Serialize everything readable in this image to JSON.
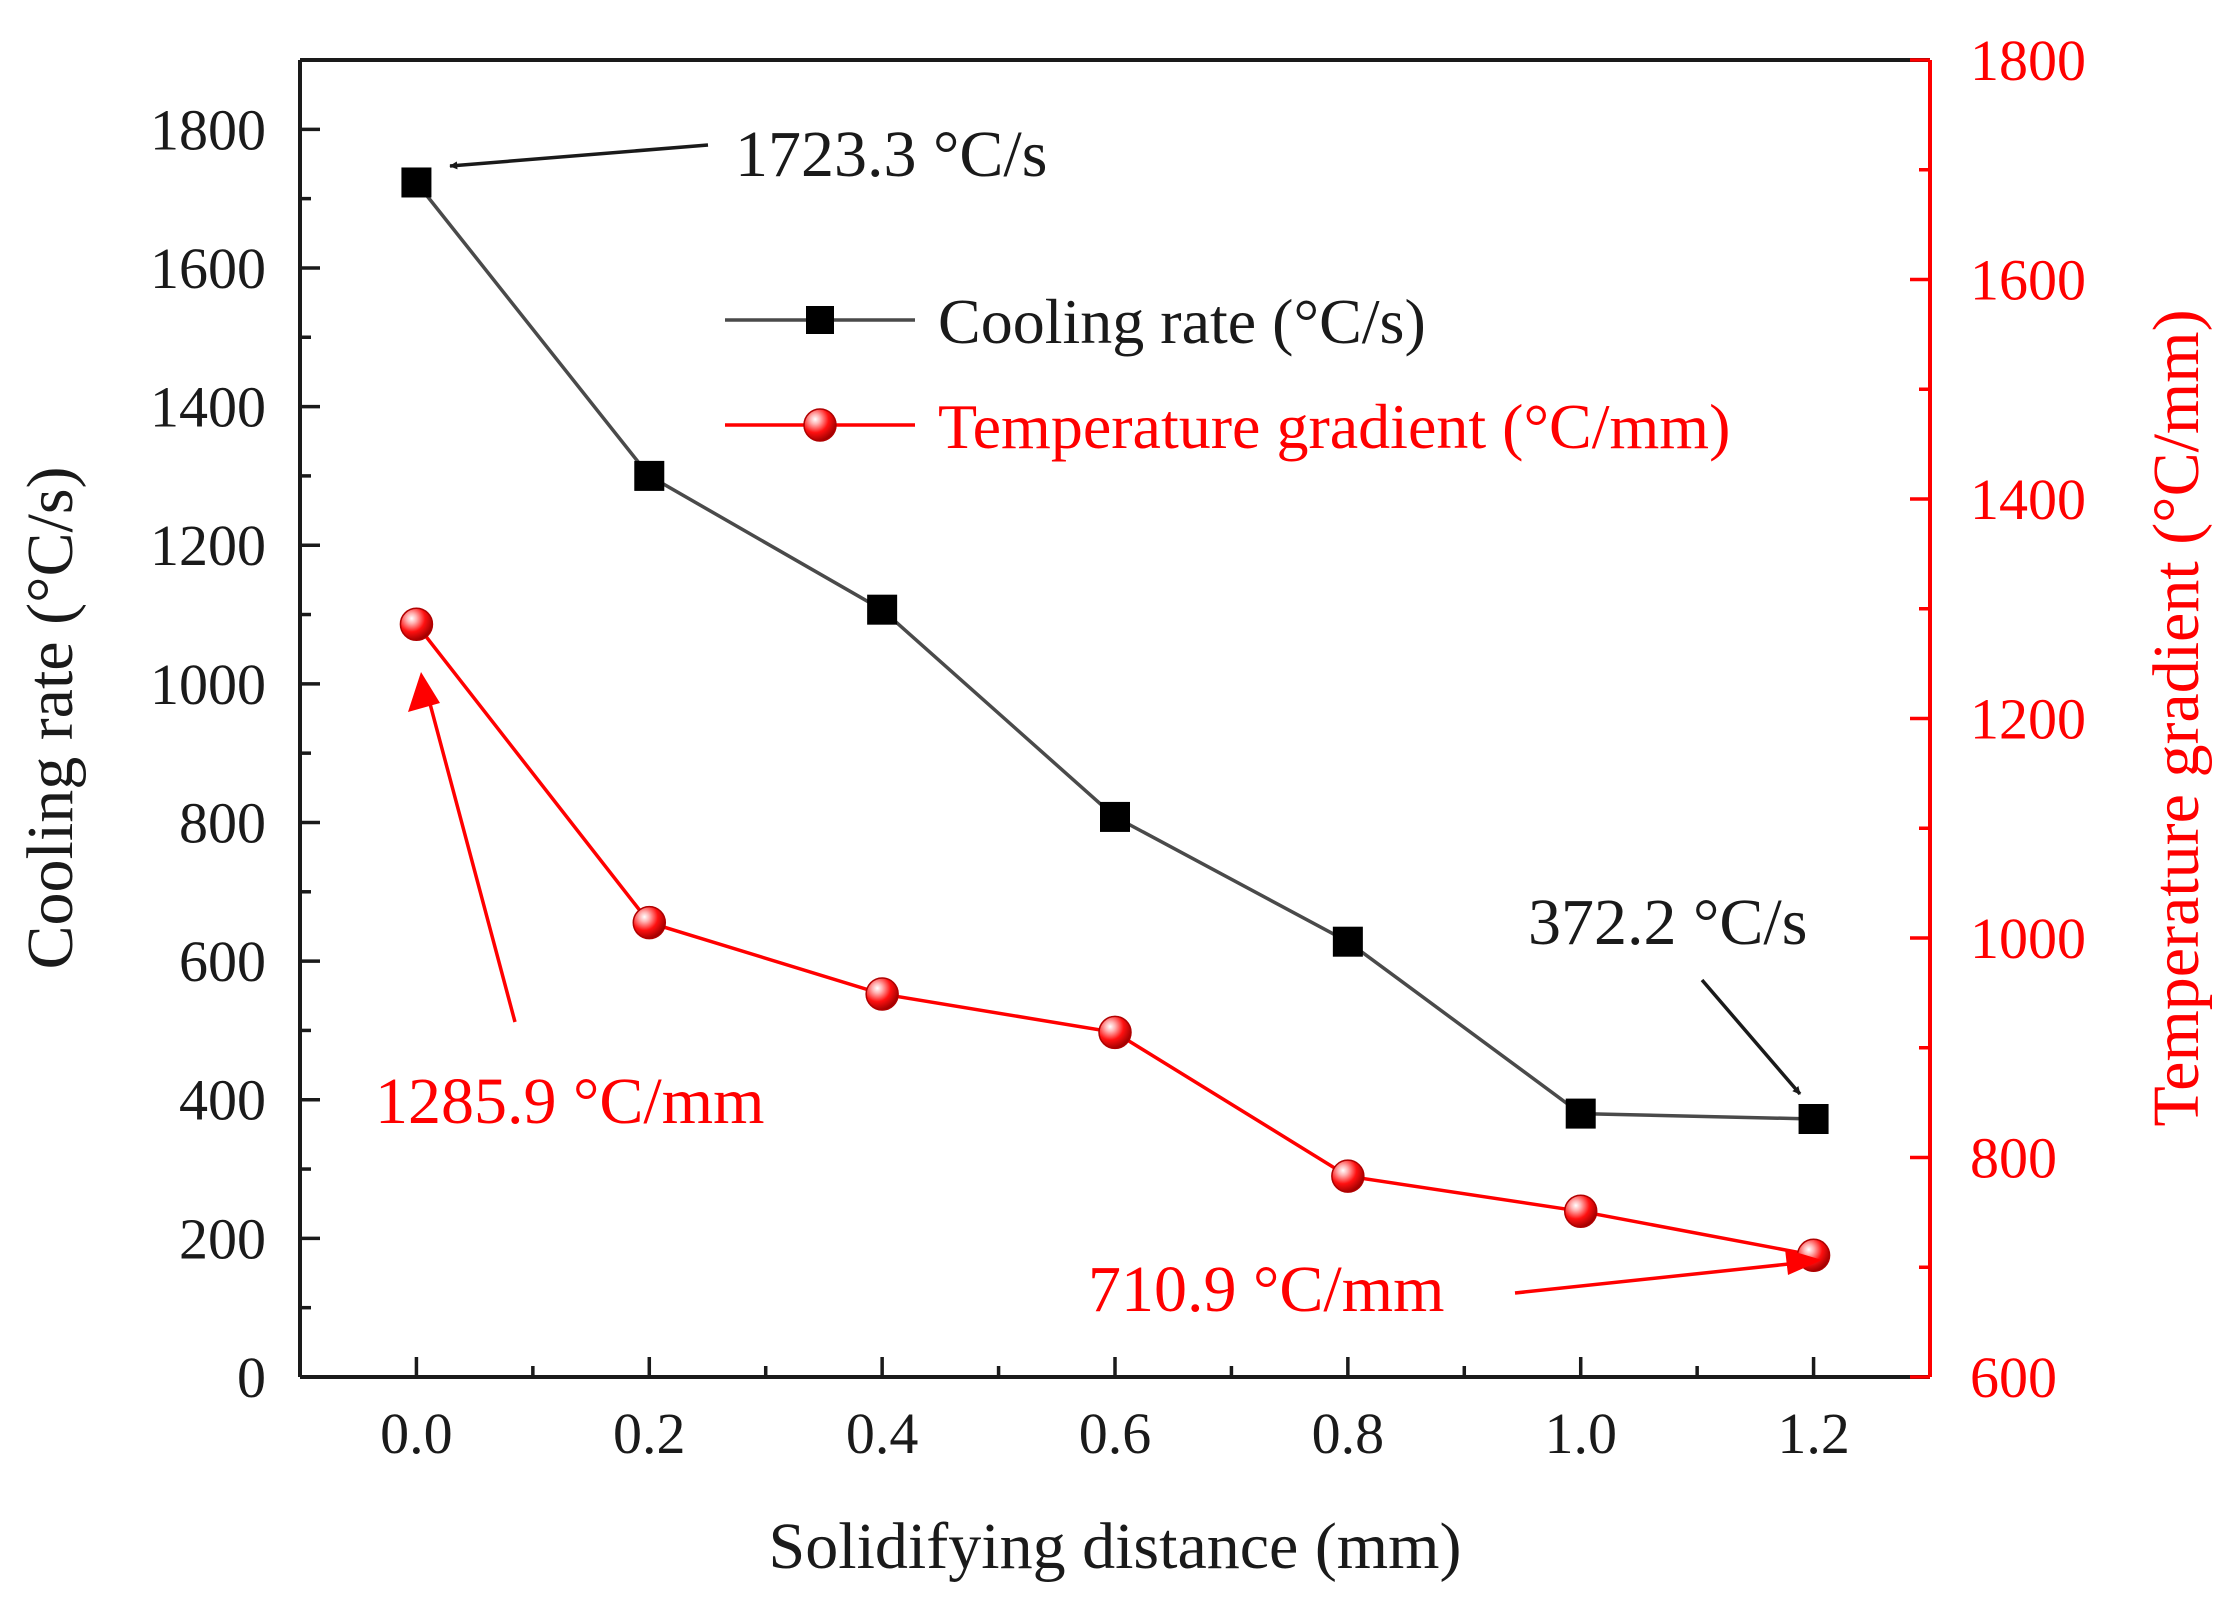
{
  "chart_data": {
    "type": "line",
    "x": [
      0.0,
      0.2,
      0.4,
      0.6,
      0.8,
      1.0,
      1.2
    ],
    "x_tick_labels": [
      "0.0",
      "0.2",
      "0.4",
      "0.6",
      "0.8",
      "1.0",
      "1.2"
    ],
    "xlabel": "Solidifying distance (mm)",
    "xlim": [
      -0.1,
      1.3
    ],
    "ylabel": "Cooling rate (°C/s)",
    "ylim": [
      0,
      1900
    ],
    "y_tick_labels": [
      "0",
      "200",
      "400",
      "600",
      "800",
      "1000",
      "1200",
      "1400",
      "1600",
      "1800"
    ],
    "y2label": "Temperature gradient (°C/mm)",
    "y2lim": [
      600,
      1800
    ],
    "y2_tick_labels": [
      "600",
      "800",
      "1000",
      "1200",
      "1400",
      "1600",
      "1800"
    ],
    "series": [
      {
        "name": "Cooling rate (°C/s)",
        "axis": "left",
        "marker": "square",
        "color": "#000000",
        "line_color": "#4a4a4a",
        "values": [
          1723.3,
          1300,
          1107,
          808,
          628,
          380,
          372.2
        ]
      },
      {
        "name": "Temperature gradient (°C/mm)",
        "axis": "right",
        "marker": "sphere",
        "color": "#ff0000",
        "line_color": "#ff0000",
        "values": [
          1285.9,
          1014,
          949,
          914,
          783,
          751,
          710.9
        ]
      }
    ],
    "annotations": [
      {
        "text": "1723.3 °C/s",
        "color": "#1a1a1a"
      },
      {
        "text": "372.2 °C/s",
        "color": "#1a1a1a"
      },
      {
        "text": "1285.9 °C/mm",
        "color": "#ff0000"
      },
      {
        "text": "710.9 °C/mm",
        "color": "#ff0000"
      }
    ],
    "legend_position": "top-center",
    "grid": false
  }
}
